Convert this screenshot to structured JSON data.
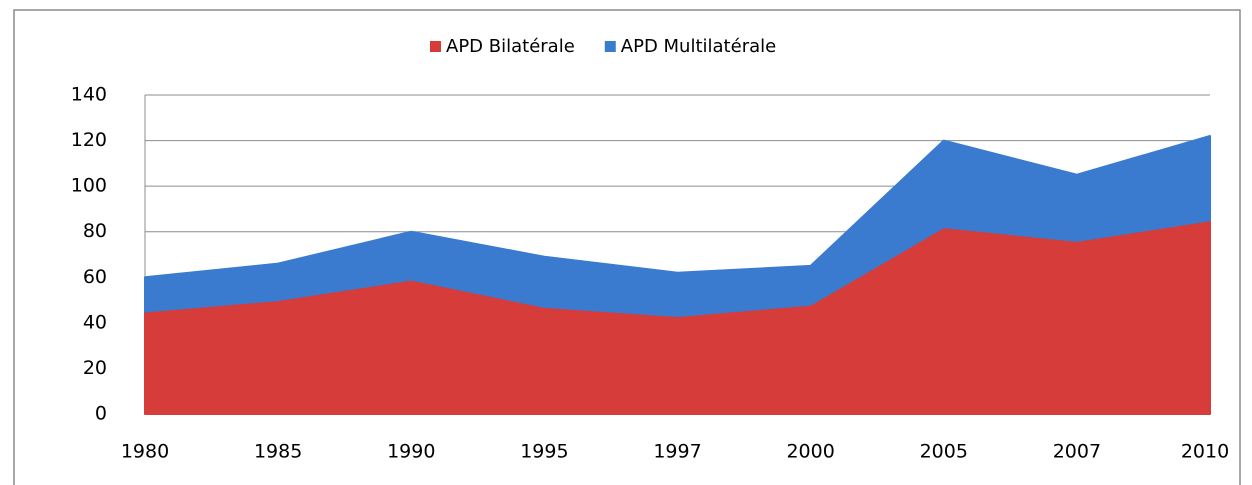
{
  "chart_data": {
    "type": "stacked_area",
    "categories": [
      "1980",
      "1985",
      "1990",
      "1995",
      "1997",
      "2000",
      "2005",
      "2007",
      "2010"
    ],
    "series": [
      {
        "name": "APD Bilatérale",
        "color": "#d63c3a",
        "values": [
          45,
          50,
          59,
          47,
          43,
          48,
          82,
          76,
          85
        ]
      },
      {
        "name": "APD Multilatérale",
        "color": "#3a7bd0",
        "values": [
          15,
          16,
          21,
          22,
          19,
          17,
          38,
          29,
          37
        ]
      }
    ],
    "ylim": [
      0,
      140
    ],
    "yticks": [
      0,
      20,
      40,
      60,
      80,
      100,
      120,
      140
    ],
    "grid": true,
    "legend": "top"
  }
}
